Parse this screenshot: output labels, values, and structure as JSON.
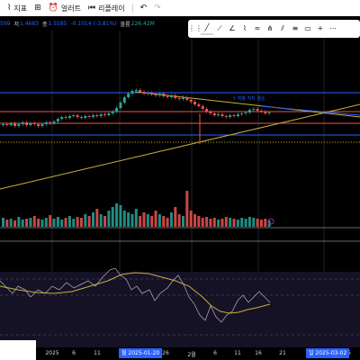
{
  "toolbar": {
    "chart_icon": "chart-icon",
    "chart_label": "지표",
    "layout_icon": "grid-icon",
    "alert_icon": "alarm-icon",
    "alert_label": "얼러트",
    "replay_icon": "rewind-icon",
    "replay_label": "리플레이",
    "undo_icon": "undo-icon",
    "redo_icon": "redo-icon"
  },
  "legend": {
    "open_frag": "599",
    "high_label": "저",
    "high_value": "1.4683",
    "close_label": "종",
    "close_value": "1.5585",
    "change_value": "-0.1014",
    "change_pct": "(-3.81%)",
    "volume_label": "볼륨",
    "volume_value": "226.42M"
  },
  "drawing_toolbar": {
    "tools": [
      "grip-icon",
      "line-tool-icon",
      "horizontal-ray-icon",
      "trend-angle-icon",
      "polyline-icon",
      "zigzag-icon",
      "pitchfork-icon",
      "channel-icon",
      "fib-icon",
      "add-icon",
      "close-icon"
    ],
    "line_color": "#d1d4dc"
  },
  "annotation": "↑ 저항 지지 결손",
  "x_axis": {
    "labels": [
      {
        "text": "2025",
        "x": 58
      },
      {
        "text": "6",
        "x": 82
      },
      {
        "text": "11",
        "x": 108
      },
      {
        "text": "26",
        "x": 184
      },
      {
        "text": "2월",
        "x": 213
      },
      {
        "text": "6",
        "x": 239
      },
      {
        "text": "11",
        "x": 264
      },
      {
        "text": "16",
        "x": 287
      },
      {
        "text": "21",
        "x": 314
      },
      {
        "text": "26",
        "x": 386
      }
    ],
    "highlight_1": "월 2025-01-20",
    "highlight_2": "일 2025-03-02"
  },
  "badge": {
    "line1": "",
    "line2": ""
  },
  "colors": {
    "up": "#26a69a",
    "down": "#ef5350",
    "accent": "#2962ff",
    "yellow": "#c9b037",
    "red_line": "#ef5350"
  }
}
